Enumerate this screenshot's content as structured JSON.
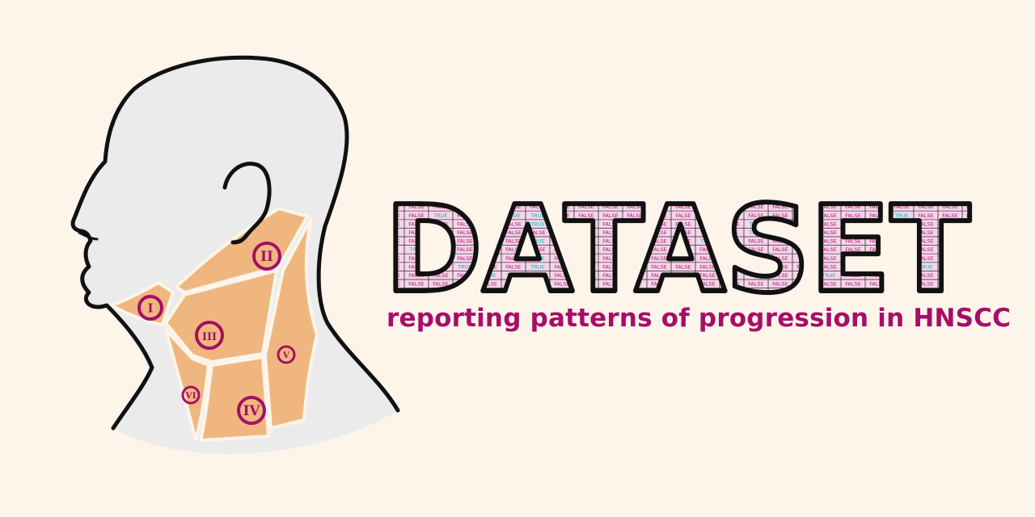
{
  "title": "DATASET",
  "subtitle": "reporting patterns of progression in HNSCC",
  "levels": [
    {
      "id": "I",
      "label": "I"
    },
    {
      "id": "II",
      "label": "II"
    },
    {
      "id": "III",
      "label": "III"
    },
    {
      "id": "IV",
      "label": "IV"
    },
    {
      "id": "V",
      "label": "V"
    },
    {
      "id": "VI",
      "label": "VI"
    }
  ],
  "table_values": [
    "FALSE",
    "TRUE"
  ],
  "colors": {
    "background": "#fdf4ea",
    "head": "#ebebeb",
    "outline": "#111111",
    "neck_regions": "#efb77f",
    "accent": "#a50e68",
    "grid_fill": "#f6d5ea",
    "grid_line": "#3a3a3a",
    "true_text": "#13b3b3",
    "false_text": "#b0146d"
  }
}
